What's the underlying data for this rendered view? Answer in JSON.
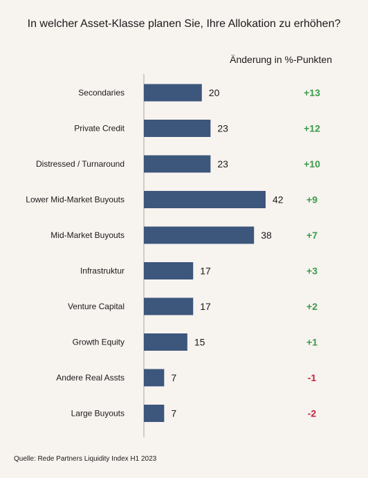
{
  "title": "In welcher Asset-Klasse planen Sie, Ihre Allokation zu erhöhen?",
  "change_header": "Änderung in %-Punkten",
  "source": "Quelle: Rede Partners Liquidity Index H1 2023",
  "colors": {
    "bar": "#3c567c",
    "positive": "#3a9a4a",
    "negative": "#c0233a",
    "axis": "#c9bfb4",
    "background": "#f7f3ef"
  },
  "chart_data": {
    "type": "bar",
    "orientation": "horizontal",
    "categories": [
      "Secondaries",
      "Private Credit",
      "Distressed / Turnaround",
      "Lower Mid-Market Buyouts",
      "Mid-Market Buyouts",
      "Infrastruktur",
      "Venture Capital",
      "Growth Equity",
      "Andere Real Assts",
      "Large Buyouts"
    ],
    "values": [
      20,
      23,
      23,
      42,
      38,
      17,
      17,
      15,
      7,
      7
    ],
    "changes": [
      "+13",
      "+12",
      "+10",
      "+9",
      "+7",
      "+3",
      "+2",
      "+1",
      "-1",
      "-2"
    ],
    "xlim": [
      0,
      48
    ],
    "grid": false
  }
}
